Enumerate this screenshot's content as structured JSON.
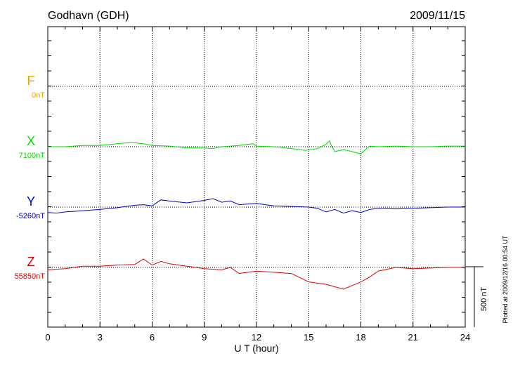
{
  "header": {
    "station": "Godhavn (GDH)",
    "date": "2009/11/15"
  },
  "plotted_note": "Plotted at 2009/12/16 00:54 UT",
  "scale_label": "500 nT",
  "chart_data": {
    "type": "line",
    "title": "Godhavn (GDH)",
    "xlabel": "U T (hour)",
    "xlim": [
      0,
      24
    ],
    "x_ticks": [
      "0",
      "3",
      "6",
      "9",
      "12",
      "15",
      "18",
      "21",
      "24"
    ],
    "grid": true,
    "scale_bar_nT": 500,
    "series": [
      {
        "name": "F",
        "baseline_label": "0nT",
        "baseline_nT": 0,
        "color": "#f0a000",
        "x": [],
        "values": []
      },
      {
        "name": "X",
        "baseline_label": "7100nT",
        "baseline_nT": 7100,
        "color": "#00dd00",
        "x": [
          0,
          1,
          2,
          3,
          4,
          4.8,
          5.5,
          6,
          7,
          8,
          9,
          9.5,
          10,
          11,
          11.8,
          12,
          13,
          14,
          14.8,
          15.5,
          16,
          16.2,
          16.3,
          16.5,
          17,
          17.5,
          18,
          18.2,
          18.5,
          19,
          20,
          21,
          22,
          23,
          24
        ],
        "values": [
          0,
          0,
          10,
          10,
          25,
          35,
          25,
          10,
          5,
          -10,
          -10,
          -15,
          0,
          10,
          25,
          5,
          0,
          -15,
          -30,
          -15,
          20,
          50,
          10,
          -40,
          -25,
          -40,
          -60,
          -30,
          5,
          0,
          5,
          0,
          0,
          5,
          5
        ]
      },
      {
        "name": "Y",
        "baseline_label": "-5260nT",
        "baseline_nT": -5260,
        "color": "#0000cc",
        "x": [
          0,
          0.5,
          1,
          2,
          3,
          4,
          5,
          5.5,
          6,
          6.5,
          7,
          8,
          9,
          9.5,
          10,
          10.5,
          11,
          12,
          13,
          14,
          15,
          15.5,
          16,
          16.5,
          17,
          17.5,
          18,
          18.5,
          19,
          20,
          21,
          22,
          23,
          24
        ],
        "values": [
          -45,
          -50,
          -40,
          -30,
          -20,
          -5,
          15,
          20,
          10,
          60,
          50,
          35,
          55,
          70,
          40,
          50,
          20,
          30,
          10,
          5,
          0,
          -10,
          -40,
          -20,
          -50,
          -30,
          -45,
          -20,
          -10,
          -15,
          -10,
          -5,
          0,
          0
        ]
      },
      {
        "name": "Z",
        "baseline_label": "55850nT",
        "baseline_nT": 55850,
        "color": "#dd0000",
        "x": [
          0,
          1,
          2,
          3,
          4,
          5,
          5.5,
          6,
          6.5,
          7,
          8,
          9,
          10,
          10.5,
          11,
          12,
          13,
          14,
          15,
          16,
          16.5,
          17,
          17.5,
          18,
          18.5,
          19,
          20,
          21,
          22,
          23,
          24
        ],
        "values": [
          -20,
          -10,
          10,
          10,
          20,
          25,
          70,
          20,
          50,
          30,
          10,
          -10,
          -20,
          0,
          -50,
          -30,
          -40,
          -50,
          -120,
          -140,
          -160,
          -180,
          -150,
          -120,
          -80,
          -30,
          0,
          -10,
          -5,
          0,
          0
        ]
      }
    ]
  }
}
